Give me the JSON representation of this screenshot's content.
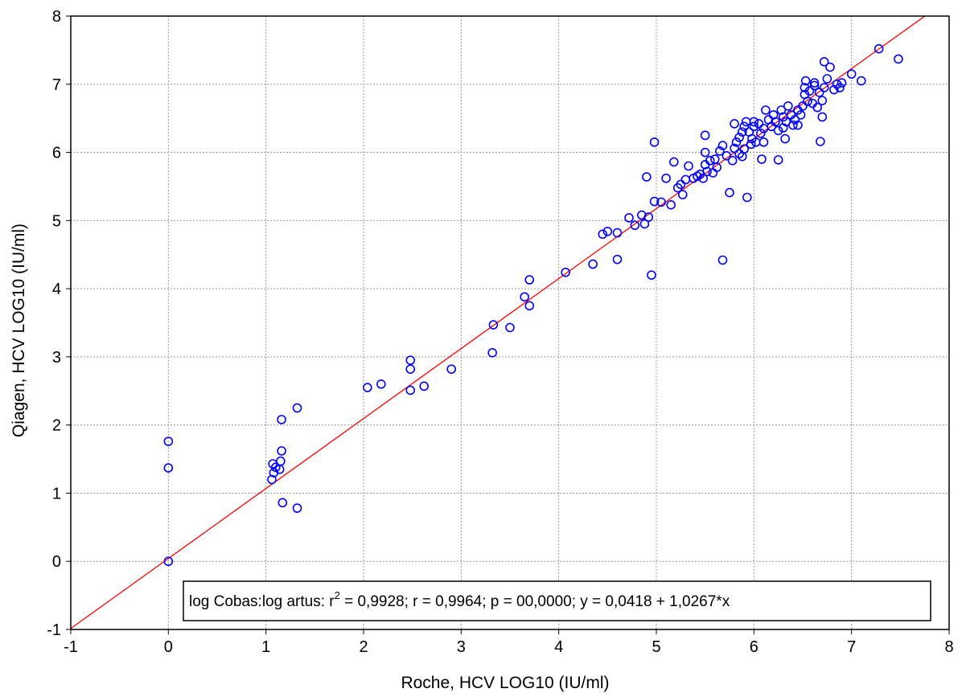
{
  "chart_data": {
    "type": "scatter",
    "xlabel": "Roche, HCV LOG10 (IU/ml)",
    "ylabel": "Qiagen, HCV LOG10  (IU/ml)",
    "xlim": [
      -1,
      8
    ],
    "ylim": [
      -1,
      8
    ],
    "xticks": [
      -1,
      0,
      1,
      2,
      3,
      4,
      5,
      6,
      7,
      8
    ],
    "yticks": [
      -1,
      0,
      1,
      2,
      3,
      4,
      5,
      6,
      7,
      8
    ],
    "grid": true,
    "marker_color": "#0000ff",
    "line_color": "#ff0000",
    "regression": {
      "intercept": 0.0418,
      "slope": 1.0267
    },
    "stats_box": {
      "prefix": "log Cobas:log artus:  r",
      "sup": "2",
      "rest": " = 0,9928;  r = 0,9964; p = 00,0000;  y = 0,0418 + 1,0267*x"
    },
    "points": [
      [
        0.0,
        0.0
      ],
      [
        0.0,
        1.37
      ],
      [
        0.0,
        1.76
      ],
      [
        1.06,
        1.2
      ],
      [
        1.08,
        1.3
      ],
      [
        1.07,
        1.43
      ],
      [
        1.1,
        1.38
      ],
      [
        1.15,
        1.47
      ],
      [
        1.14,
        1.35
      ],
      [
        1.16,
        1.62
      ],
      [
        1.16,
        2.08
      ],
      [
        1.17,
        0.86
      ],
      [
        1.32,
        0.78
      ],
      [
        1.32,
        2.25
      ],
      [
        2.04,
        2.55
      ],
      [
        2.18,
        2.6
      ],
      [
        2.48,
        2.51
      ],
      [
        2.48,
        2.82
      ],
      [
        2.48,
        2.95
      ],
      [
        2.62,
        2.57
      ],
      [
        2.9,
        2.82
      ],
      [
        3.32,
        3.06
      ],
      [
        3.33,
        3.47
      ],
      [
        3.5,
        3.43
      ],
      [
        3.65,
        3.88
      ],
      [
        3.7,
        4.13
      ],
      [
        3.7,
        3.75
      ],
      [
        4.07,
        4.24
      ],
      [
        4.35,
        4.36
      ],
      [
        4.45,
        4.8
      ],
      [
        4.5,
        4.84
      ],
      [
        4.6,
        4.82
      ],
      [
        4.6,
        4.43
      ],
      [
        4.72,
        5.04
      ],
      [
        4.78,
        4.93
      ],
      [
        4.85,
        5.08
      ],
      [
        4.88,
        4.95
      ],
      [
        4.9,
        5.64
      ],
      [
        4.92,
        5.05
      ],
      [
        4.95,
        4.2
      ],
      [
        4.98,
        5.28
      ],
      [
        4.98,
        6.15
      ],
      [
        5.05,
        5.27
      ],
      [
        5.1,
        5.62
      ],
      [
        5.15,
        5.23
      ],
      [
        5.18,
        5.86
      ],
      [
        5.22,
        5.48
      ],
      [
        5.25,
        5.53
      ],
      [
        5.27,
        5.38
      ],
      [
        5.3,
        5.6
      ],
      [
        5.33,
        5.8
      ],
      [
        5.38,
        5.62
      ],
      [
        5.42,
        5.65
      ],
      [
        5.45,
        5.68
      ],
      [
        5.48,
        5.62
      ],
      [
        5.5,
        5.82
      ],
      [
        5.5,
        6.0
      ],
      [
        5.5,
        6.25
      ],
      [
        5.52,
        5.72
      ],
      [
        5.55,
        5.88
      ],
      [
        5.58,
        5.7
      ],
      [
        5.6,
        5.9
      ],
      [
        5.62,
        5.78
      ],
      [
        5.65,
        6.02
      ],
      [
        5.68,
        6.1
      ],
      [
        5.68,
        4.42
      ],
      [
        5.72,
        5.95
      ],
      [
        5.75,
        5.41
      ],
      [
        5.78,
        5.88
      ],
      [
        5.8,
        6.06
      ],
      [
        5.8,
        6.42
      ],
      [
        5.82,
        6.15
      ],
      [
        5.85,
        6.22
      ],
      [
        5.85,
        5.98
      ],
      [
        5.88,
        6.3
      ],
      [
        5.88,
        5.94
      ],
      [
        5.9,
        6.38
      ],
      [
        5.9,
        6.05
      ],
      [
        5.92,
        6.45
      ],
      [
        5.93,
        5.34
      ],
      [
        5.95,
        6.3
      ],
      [
        5.97,
        6.12
      ],
      [
        5.98,
        6.2
      ],
      [
        6.0,
        6.45
      ],
      [
        6.0,
        6.38
      ],
      [
        6.02,
        6.15
      ],
      [
        6.05,
        6.42
      ],
      [
        6.07,
        6.28
      ],
      [
        6.08,
        5.9
      ],
      [
        6.1,
        6.35
      ],
      [
        6.1,
        6.15
      ],
      [
        6.12,
        6.62
      ],
      [
        6.15,
        6.48
      ],
      [
        6.18,
        6.38
      ],
      [
        6.2,
        6.55
      ],
      [
        6.22,
        6.45
      ],
      [
        6.25,
        5.89
      ],
      [
        6.25,
        6.32
      ],
      [
        6.28,
        6.62
      ],
      [
        6.3,
        6.52
      ],
      [
        6.3,
        6.36
      ],
      [
        6.32,
        6.2
      ],
      [
        6.33,
        6.45
      ],
      [
        6.35,
        6.68
      ],
      [
        6.38,
        6.55
      ],
      [
        6.4,
        6.4
      ],
      [
        6.42,
        6.48
      ],
      [
        6.45,
        6.62
      ],
      [
        6.45,
        6.4
      ],
      [
        6.48,
        6.55
      ],
      [
        6.5,
        6.68
      ],
      [
        6.52,
        6.85
      ],
      [
        6.52,
        6.95
      ],
      [
        6.53,
        7.05
      ],
      [
        6.55,
        6.75
      ],
      [
        6.57,
        6.9
      ],
      [
        6.6,
        6.72
      ],
      [
        6.62,
        6.98
      ],
      [
        6.62,
        7.02
      ],
      [
        6.65,
        6.66
      ],
      [
        6.67,
        6.88
      ],
      [
        6.68,
        6.16
      ],
      [
        6.7,
        6.52
      ],
      [
        6.7,
        6.76
      ],
      [
        6.72,
        7.33
      ],
      [
        6.72,
        6.95
      ],
      [
        6.75,
        7.08
      ],
      [
        6.78,
        7.25
      ],
      [
        6.82,
        6.92
      ],
      [
        6.85,
        7.0
      ],
      [
        6.88,
        6.95
      ],
      [
        6.9,
        7.02
      ],
      [
        7.0,
        7.15
      ],
      [
        7.1,
        7.05
      ],
      [
        7.28,
        7.52
      ],
      [
        7.48,
        7.37
      ]
    ]
  }
}
